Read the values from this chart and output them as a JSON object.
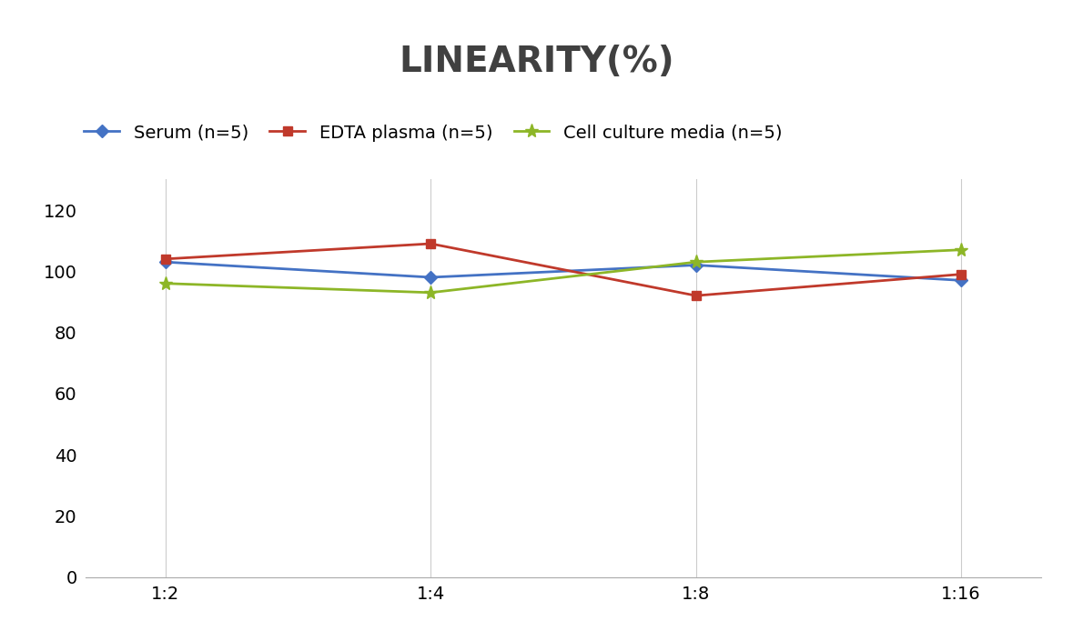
{
  "title": "LINEARITY(%)",
  "title_fontsize": 28,
  "title_fontweight": "bold",
  "title_color": "#404040",
  "x_labels": [
    "1:2",
    "1:4",
    "1:8",
    "1:16"
  ],
  "x_positions": [
    0,
    1,
    2,
    3
  ],
  "series": [
    {
      "label": "Serum (n=5)",
      "values": [
        103,
        98,
        102,
        97
      ],
      "color": "#4472C4",
      "marker": "D",
      "markersize": 7,
      "linewidth": 2
    },
    {
      "label": "EDTA plasma (n=5)",
      "values": [
        104,
        109,
        92,
        99
      ],
      "color": "#C0392B",
      "marker": "s",
      "markersize": 7,
      "linewidth": 2
    },
    {
      "label": "Cell culture media (n=5)",
      "values": [
        96,
        93,
        103,
        107
      ],
      "color": "#8DB627",
      "marker": "*",
      "markersize": 11,
      "linewidth": 2
    }
  ],
  "ylim": [
    0,
    130
  ],
  "yticks": [
    0,
    20,
    40,
    60,
    80,
    100,
    120
  ],
  "grid_color": "#CCCCCC",
  "background_color": "#FFFFFF",
  "legend_fontsize": 14,
  "tick_fontsize": 14
}
